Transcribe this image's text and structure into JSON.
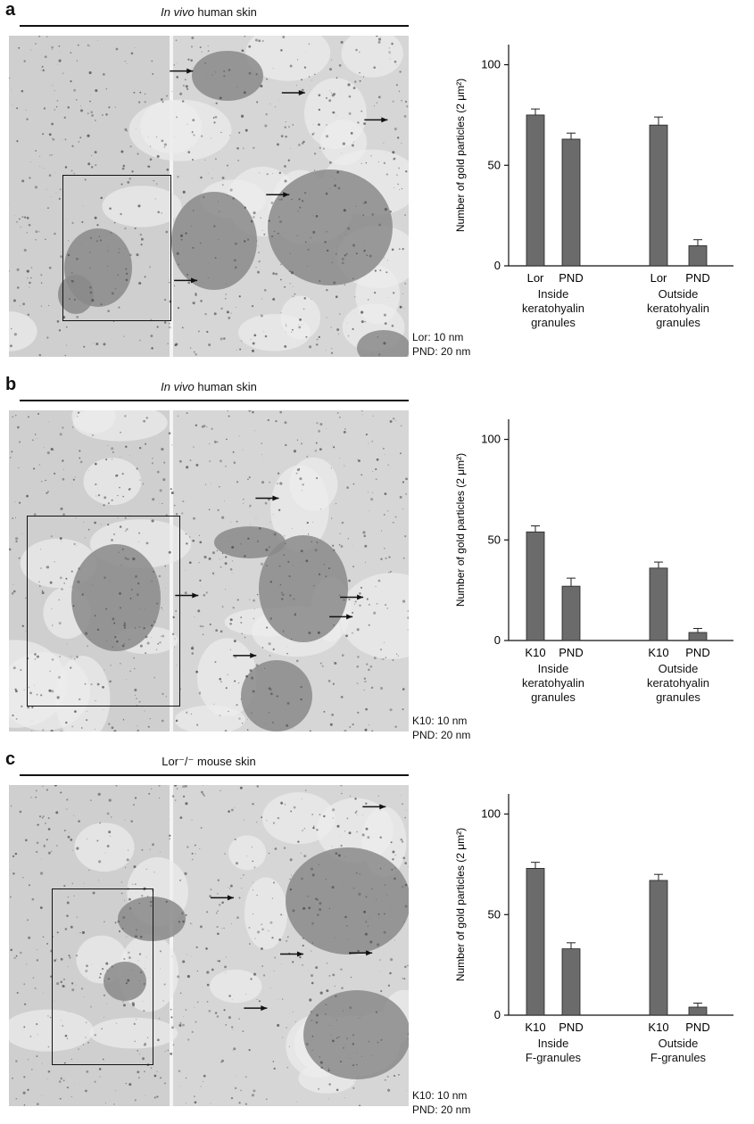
{
  "panels": [
    {
      "letter": "a",
      "title_italic": "In vivo",
      "title_rest": " human skin",
      "legend": [
        "Lor: 10 nm",
        "PND: 20 nm"
      ],
      "groups": [
        {
          "label_lines": [
            "Inside",
            "keratohyalin",
            "granules"
          ]
        },
        {
          "label_lines": [
            "Outside",
            "keratohyalin",
            "granules"
          ]
        }
      ],
      "chart_data": {
        "type": "bar",
        "ylabel": "Number of gold particles (2 μm²)",
        "ylim": [
          0,
          110
        ],
        "yticks": [
          0,
          50,
          100
        ],
        "categories": [
          "Lor",
          "PND",
          "Lor",
          "PND"
        ],
        "values": [
          75,
          63,
          70,
          10
        ],
        "errors": [
          3,
          3,
          4,
          3
        ]
      }
    },
    {
      "letter": "b",
      "title_italic": "In vivo",
      "title_rest": " human skin",
      "legend": [
        "K10: 10 nm",
        "PND: 20 nm"
      ],
      "groups": [
        {
          "label_lines": [
            "Inside",
            "keratohyalin",
            "granules"
          ]
        },
        {
          "label_lines": [
            "Outside",
            "keratohyalin",
            "granules"
          ]
        }
      ],
      "chart_data": {
        "type": "bar",
        "ylabel": "Number of gold particles (2 μm²)",
        "ylim": [
          0,
          110
        ],
        "yticks": [
          0,
          50,
          100
        ],
        "categories": [
          "K10",
          "PND",
          "K10",
          "PND"
        ],
        "values": [
          54,
          27,
          36,
          4
        ],
        "errors": [
          3,
          4,
          3,
          2
        ]
      }
    },
    {
      "letter": "c",
      "title_italic": "",
      "title_rest": "Lor⁻/⁻ mouse skin",
      "legend": [
        "K10: 10 nm",
        "PND: 20 nm"
      ],
      "groups": [
        {
          "label_lines": [
            "Inside",
            "F-granules"
          ]
        },
        {
          "label_lines": [
            "Outside",
            "F-granules"
          ]
        }
      ],
      "chart_data": {
        "type": "bar",
        "ylabel": "Number of gold particles (2 μm²)",
        "ylim": [
          0,
          110
        ],
        "yticks": [
          0,
          50,
          100
        ],
        "categories": [
          "K10",
          "PND",
          "K10",
          "PND"
        ],
        "values": [
          73,
          33,
          67,
          4
        ],
        "errors": [
          3,
          3,
          3,
          2
        ]
      }
    }
  ],
  "colors": {
    "bar": "#6b6b6b",
    "axis": "#111111",
    "micrograph": "#d6d6d6",
    "granule": "#8a8a8a"
  }
}
